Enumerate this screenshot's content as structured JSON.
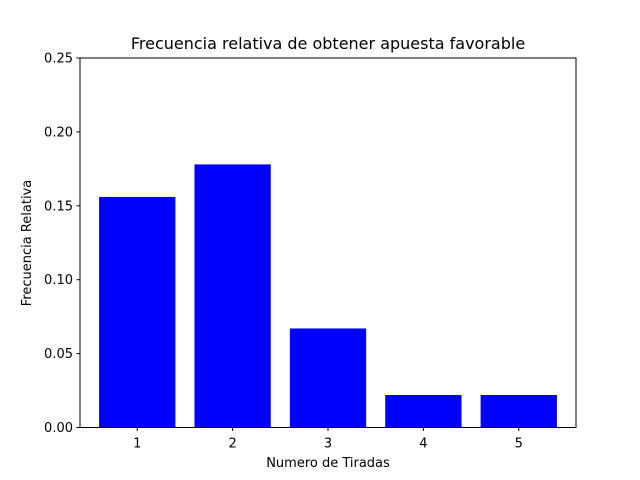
{
  "chart_data": {
    "type": "bar",
    "title": "Frecuencia relativa de obtener apuesta favorable",
    "xlabel": "Numero de Tiradas",
    "ylabel": "Frecuencia Relativa",
    "categories": [
      "1",
      "2",
      "3",
      "4",
      "5"
    ],
    "values": [
      0.156,
      0.178,
      0.067,
      0.022,
      0.022
    ],
    "ylim": [
      0,
      0.25
    ],
    "yticks": [
      "0.00",
      "0.05",
      "0.10",
      "0.15",
      "0.20",
      "0.25"
    ],
    "bar_color": "#0000ff",
    "grid": false,
    "legend": "none"
  }
}
